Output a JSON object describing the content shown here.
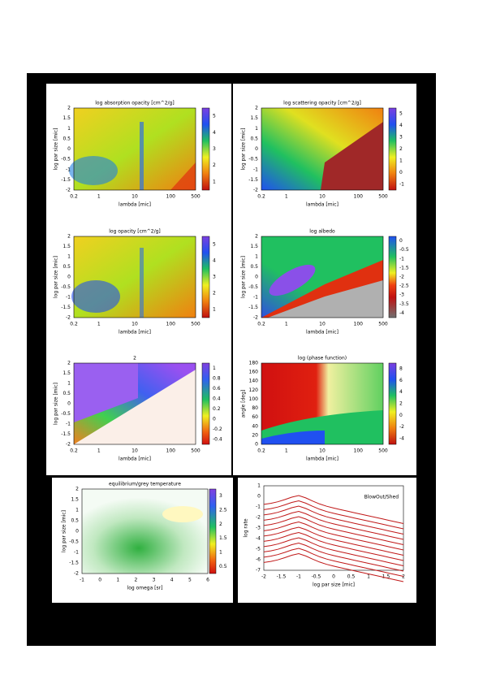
{
  "panels": [
    {
      "title": "log absorption opacity [cm^2/g]",
      "xlabel": "lambda [mic]",
      "ylabel": "log par size [mic]",
      "xticks": [
        "0.2",
        "1",
        "10",
        "100",
        "500"
      ],
      "yticks": [
        "2",
        "1.5",
        "1",
        "0.5",
        "0",
        "-0.5",
        "-1",
        "-1.5",
        "-2"
      ],
      "cbticks": [
        "5",
        "4",
        "3",
        "2",
        "1"
      ]
    },
    {
      "title": "log scattering opacity [cm^2/g]",
      "xlabel": "lambda [mic]",
      "ylabel": "log par size [mic]",
      "xticks": [
        "0.2",
        "1",
        "10",
        "100",
        "500"
      ],
      "yticks": [
        "2",
        "1.5",
        "1",
        "0.5",
        "0",
        "-0.5",
        "-1",
        "-1.5",
        "-2"
      ],
      "cbticks": [
        "5",
        "4",
        "3",
        "2",
        "1",
        "0",
        "-1"
      ]
    },
    {
      "title": "log opacity [cm^2/g]",
      "xlabel": "lambda [mic]",
      "ylabel": "log par size [mic]",
      "xticks": [
        "0.2",
        "1",
        "10",
        "100",
        "500"
      ],
      "yticks": [
        "2",
        "1.5",
        "1",
        "0.5",
        "0",
        "-0.5",
        "-1",
        "-1.5",
        "-2"
      ],
      "cbticks": [
        "5",
        "4",
        "3",
        "2",
        "1"
      ]
    },
    {
      "title": "log albedo",
      "xlabel": "lambda [mic]",
      "ylabel": "log par size [mic]",
      "xticks": [
        "0.2",
        "1",
        "10",
        "100",
        "500"
      ],
      "yticks": [
        "2",
        "1.5",
        "1",
        "0.5",
        "0",
        "-0.5",
        "-1",
        "-1.5",
        "-2"
      ],
      "cbticks": [
        "0",
        "-0.5",
        "-1",
        "-1.5",
        "-2",
        "-2.5",
        "-3",
        "-3.5",
        "-4"
      ]
    },
    {
      "title": "2",
      "xlabel": "lambda [mic]",
      "ylabel": "log par size [mic]",
      "xticks": [
        "0.2",
        "1",
        "10",
        "100",
        "500"
      ],
      "yticks": [
        "2",
        "1.5",
        "1",
        "0.5",
        "0",
        "-0.5",
        "-1",
        "-1.5",
        "-2"
      ],
      "cbticks": [
        "1",
        "0.8",
        "0.6",
        "0.4",
        "0.2",
        "0",
        "-0.2",
        "-0.4"
      ]
    },
    {
      "title": "log (phase function)",
      "xlabel": "lambda [mic]",
      "ylabel": "angle [deg]",
      "xticks": [
        "0.2",
        "1",
        "10",
        "100",
        "500"
      ],
      "yticks": [
        "180",
        "160",
        "140",
        "120",
        "100",
        "80",
        "60",
        "40",
        "20",
        "0"
      ],
      "cbticks": [
        "8",
        "6",
        "4",
        "2",
        "0",
        "-2",
        "-4"
      ]
    },
    {
      "title": "equilibrium/grey temperature",
      "xlabel": "log omega [sr]",
      "ylabel": "log par size [mic]",
      "xticks": [
        "-1",
        "0",
        "1",
        "2",
        "3",
        "4",
        "5",
        "6"
      ],
      "yticks": [
        "2",
        "1.5",
        "1",
        "0.5",
        "0",
        "-0.5",
        "-1",
        "-1.5",
        "-2"
      ],
      "cbticks": [
        "3",
        "2.5",
        "2",
        "1.5",
        "1",
        "0.5"
      ]
    },
    {
      "legend": "BlowOut/Shed",
      "xlabel": "log par size [mic]",
      "ylabel": "log rate",
      "xticks": [
        "-2",
        "-1.5",
        "-1",
        "-0.5",
        "0",
        "0.5",
        "1",
        "1.5",
        "2"
      ],
      "yticks": [
        "1",
        "0",
        "-1",
        "-2",
        "-3",
        "-4",
        "-5",
        "-6",
        "-7"
      ]
    }
  ]
}
